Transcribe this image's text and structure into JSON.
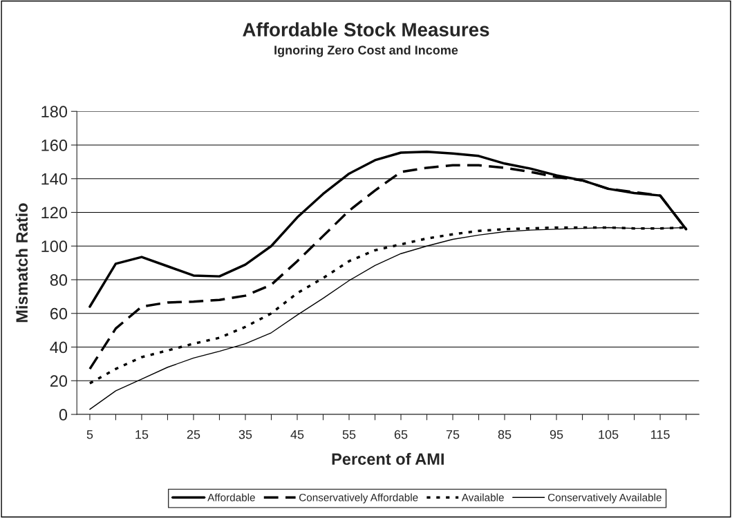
{
  "chart_data": {
    "type": "line",
    "title": "Affordable Stock Measures",
    "subtitle": "Ignoring Zero Cost and Income",
    "xlabel": "Percent of AMI",
    "ylabel": "Mismatch Ratio",
    "categories": [
      "5",
      null,
      "15",
      null,
      "25",
      null,
      "35",
      null,
      "45",
      null,
      "55",
      null,
      "65",
      null,
      "75",
      null,
      "85",
      null,
      "95",
      null,
      "105",
      null,
      "115",
      null
    ],
    "series": [
      {
        "name": "Affordable",
        "color": "#000000",
        "line_style": "solid",
        "values": [
          64,
          89.5,
          93.5,
          88,
          82.5,
          82,
          89,
          100,
          117,
          131,
          143,
          151,
          155.5,
          156,
          155,
          153.5,
          149,
          146,
          142,
          139,
          134,
          131.5,
          130,
          110
        ]
      },
      {
        "name": "Conservatively Affordable",
        "color": "#000000",
        "line_style": "dashed",
        "values": [
          27,
          51,
          64,
          66.5,
          67,
          68,
          70.5,
          77,
          91,
          106,
          121,
          133,
          144,
          146.5,
          148,
          148,
          146.5,
          144,
          141,
          139,
          134,
          132,
          130,
          110
        ]
      },
      {
        "name": "Available",
        "color": "#000000",
        "line_style": "dotted",
        "values": [
          18.5,
          27,
          34,
          38,
          42,
          45.5,
          52,
          60,
          72,
          81,
          91,
          97.5,
          101,
          104.5,
          107,
          109,
          110,
          110.5,
          111,
          111,
          111,
          110.5,
          110.5,
          111
        ]
      },
      {
        "name": "Conservatively Available",
        "color": "#000000",
        "line_style": "solid",
        "values": [
          3,
          14,
          21,
          28,
          33.5,
          37.5,
          42,
          48.5,
          59,
          69,
          79.5,
          88.5,
          95.5,
          100,
          104,
          106.5,
          108.5,
          109.5,
          110,
          110.5,
          111,
          110.5,
          110.5,
          111
        ]
      }
    ],
    "ylim": [
      0,
      180
    ],
    "yticks": [
      0,
      20,
      40,
      60,
      80,
      100,
      120,
      140,
      160,
      180
    ],
    "grid": "y",
    "legend": "bottom"
  }
}
